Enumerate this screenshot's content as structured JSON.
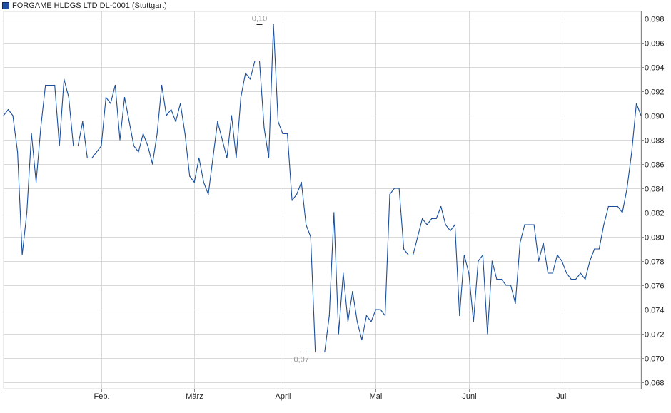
{
  "legend": {
    "label": "FORGAME HLDGS LTD DL-0001 (Stuttgart)",
    "color": "#1f4ea0"
  },
  "colors": {
    "line": "#1a4f9c",
    "grid": "#d9d9d9",
    "axis": "#888888"
  },
  "chart_data": {
    "type": "line",
    "title": "",
    "xlabel": "",
    "ylabel": "",
    "ylim": [
      0.067,
      0.099
    ],
    "grid": true,
    "y_axis_position": "right",
    "legend_position": "top-left",
    "y_ticks": [
      "0,068",
      "0,070",
      "0,072",
      "0,074",
      "0,076",
      "0,078",
      "0,080",
      "0,082",
      "0,084",
      "0,086",
      "0,088",
      "0,090",
      "0,092",
      "0,094",
      "0,096",
      "0,098"
    ],
    "y_tick_values": [
      0.068,
      0.07,
      0.072,
      0.074,
      0.076,
      0.078,
      0.08,
      0.082,
      0.084,
      0.086,
      0.088,
      0.09,
      0.092,
      0.094,
      0.096,
      0.098
    ],
    "x_ticks": [
      {
        "label": "Feb.",
        "index": 21
      },
      {
        "label": "März",
        "index": 41
      },
      {
        "label": "April",
        "index": 60
      },
      {
        "label": "Mai",
        "index": 80
      },
      {
        "label": "Juni",
        "index": 100
      },
      {
        "label": "Juli",
        "index": 120
      }
    ],
    "annotations": [
      {
        "label": "0,10",
        "index": 55,
        "value": 0.0975,
        "position": "above"
      },
      {
        "label": "0,07",
        "index": 64,
        "value": 0.0705,
        "position": "below"
      }
    ],
    "series": [
      {
        "values": [
          0.09,
          0.0905,
          0.09,
          0.087,
          0.0785,
          0.082,
          0.0885,
          0.0845,
          0.089,
          0.0925,
          0.0925,
          0.0925,
          0.0875,
          0.093,
          0.0915,
          0.0875,
          0.0875,
          0.0895,
          0.0865,
          0.0865,
          0.087,
          0.0875,
          0.0915,
          0.091,
          0.0925,
          0.088,
          0.0915,
          0.0895,
          0.0875,
          0.087,
          0.0885,
          0.0875,
          0.086,
          0.0885,
          0.0925,
          0.09,
          0.0905,
          0.0895,
          0.091,
          0.0885,
          0.085,
          0.0845,
          0.0865,
          0.0845,
          0.0835,
          0.0865,
          0.0895,
          0.088,
          0.0865,
          0.09,
          0.0865,
          0.0915,
          0.0935,
          0.093,
          0.0945,
          0.0945,
          0.089,
          0.0865,
          0.0975,
          0.0895,
          0.0885,
          0.0885,
          0.083,
          0.0835,
          0.0845,
          0.081,
          0.08,
          0.0705,
          0.0705,
          0.0705,
          0.0735,
          0.082,
          0.072,
          0.077,
          0.073,
          0.0755,
          0.073,
          0.0715,
          0.0735,
          0.073,
          0.074,
          0.074,
          0.0735,
          0.0835,
          0.084,
          0.084,
          0.079,
          0.0785,
          0.0785,
          0.08,
          0.0815,
          0.081,
          0.0815,
          0.0815,
          0.0825,
          0.081,
          0.0805,
          0.081,
          0.0735,
          0.0785,
          0.077,
          0.073,
          0.078,
          0.0785,
          0.072,
          0.078,
          0.0765,
          0.0765,
          0.076,
          0.076,
          0.0745,
          0.0795,
          0.081,
          0.081,
          0.081,
          0.078,
          0.0795,
          0.077,
          0.077,
          0.0785,
          0.078,
          0.077,
          0.0765,
          0.0765,
          0.077,
          0.0765,
          0.078,
          0.079,
          0.079,
          0.081,
          0.0825,
          0.0825,
          0.0825,
          0.082,
          0.084,
          0.087,
          0.091,
          0.09
        ]
      }
    ]
  }
}
